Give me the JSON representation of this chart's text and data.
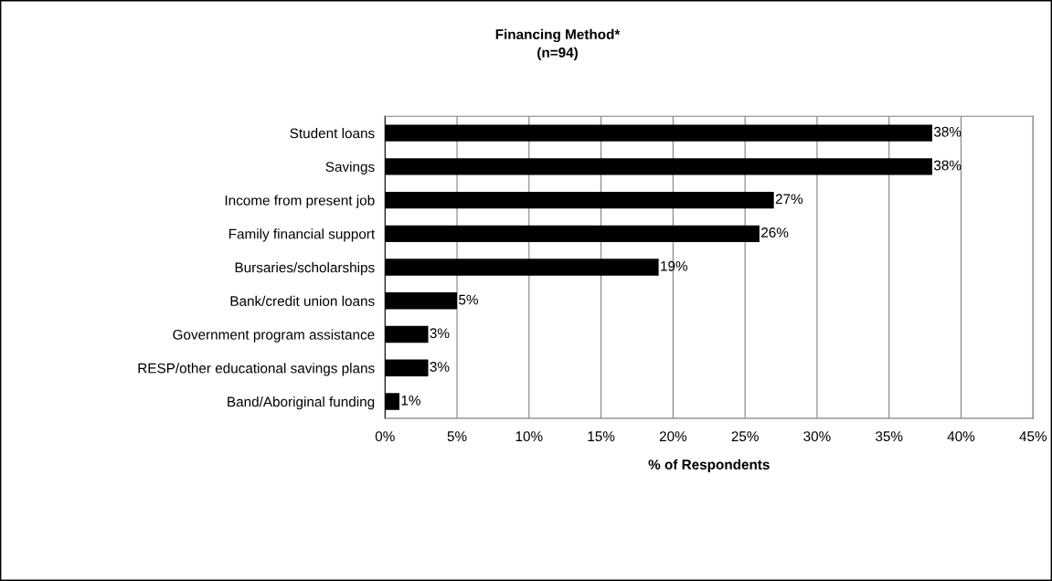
{
  "chart_data": {
    "type": "bar",
    "orientation": "horizontal",
    "title": "Financing Method*\n(n=94)",
    "xlabel": "% of Respondents",
    "categories": [
      "Student loans",
      "Savings",
      "Income from present job",
      "Family financial support",
      "Bursaries/scholarships",
      "Bank/credit union loans",
      "Government program assistance",
      "RESP/other educational savings plans",
      "Band/Aboriginal funding"
    ],
    "values": [
      38,
      38,
      27,
      26,
      19,
      5,
      3,
      3,
      1
    ],
    "color": "#000000",
    "value_labels": [
      "38%",
      "38%",
      "27%",
      "26%",
      "19%",
      "5%",
      "3%",
      "3%",
      "1%"
    ],
    "xlim": [
      0,
      45
    ],
    "xticks": [
      {
        "value": 0,
        "label": "0%"
      },
      {
        "value": 5,
        "label": "5%"
      },
      {
        "value": 10,
        "label": "10%"
      },
      {
        "value": 15,
        "label": "15%"
      },
      {
        "value": 20,
        "label": "20%"
      },
      {
        "value": 25,
        "label": "25%"
      },
      {
        "value": 30,
        "label": "30%"
      },
      {
        "value": 35,
        "label": "35%"
      },
      {
        "value": 40,
        "label": "40%"
      },
      {
        "value": 45,
        "label": "45%"
      }
    ],
    "grid": "x",
    "legend": false
  }
}
